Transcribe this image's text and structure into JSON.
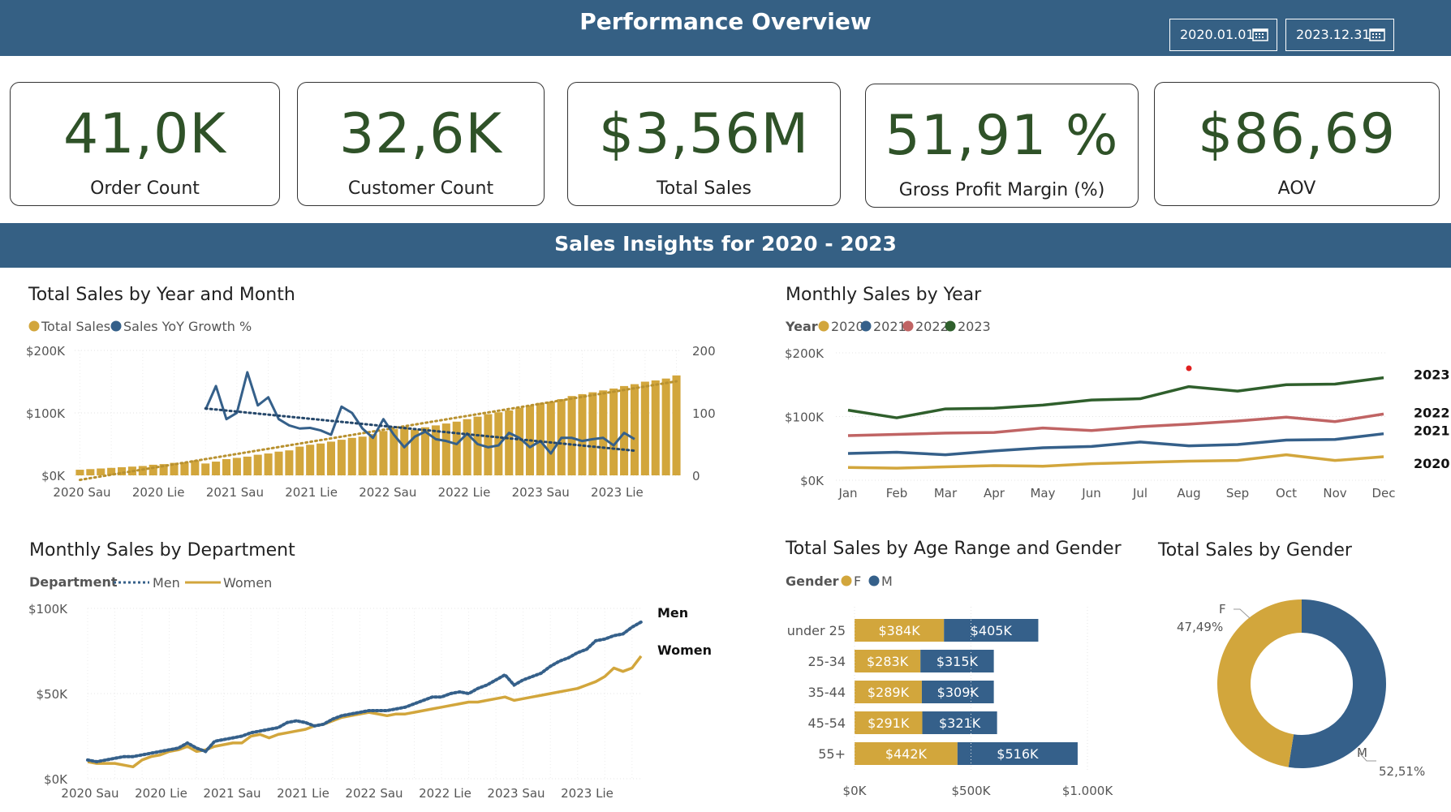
{
  "header": {
    "title": "Performance Overview",
    "date_start": "2020.01.01",
    "date_end": "2023.12.31"
  },
  "kpis": [
    {
      "value": "41,0K",
      "label": "Order Count"
    },
    {
      "value": "32,6K",
      "label": "Customer Count"
    },
    {
      "value": "$3,56M",
      "label": "Total Sales"
    },
    {
      "value": "51,91 %",
      "label": "Gross Profit Margin (%)"
    },
    {
      "value": "$86,69",
      "label": "AOV"
    }
  ],
  "section_title": "Sales Insights for 2020 - 2023",
  "colors": {
    "band": "#356084",
    "gold": "#D2A63C",
    "blue": "#35608A",
    "red": "#C06464",
    "green": "#2F5F2C",
    "kpi_text": "#2F5228"
  },
  "chart_data": [
    {
      "type": "bar",
      "title": "Total Sales by Year and Month",
      "legend": [
        "Total Sales",
        "Sales YoY Growth %"
      ],
      "ylim": [
        0,
        200000
      ],
      "y2lim": [
        0,
        200
      ],
      "y_ticks": [
        "$200K",
        "$100K",
        "$0K"
      ],
      "y2_ticks": [
        "200",
        "100",
        "0"
      ],
      "x_ticks": [
        "2020 Sau",
        "2020 Lie",
        "2021 Sau",
        "2021 Lie",
        "2022 Sau",
        "2022 Lie",
        "2023 Sau",
        "2023 Lie"
      ],
      "bar_values_k": [
        9,
        10,
        11,
        12,
        13,
        14,
        15,
        17,
        18,
        20,
        21,
        24,
        19,
        22,
        26,
        28,
        30,
        33,
        35,
        38,
        40,
        46,
        49,
        51,
        54,
        57,
        60,
        62,
        66,
        71,
        74,
        78,
        73,
        77,
        80,
        83,
        86,
        90,
        94,
        98,
        101,
        104,
        108,
        112,
        116,
        118,
        122,
        127,
        130,
        133,
        136,
        139,
        143,
        146,
        150,
        152,
        155,
        160
      ],
      "yoy_growth": [
        105,
        143,
        90,
        100,
        165,
        112,
        125,
        90,
        80,
        75,
        76,
        72,
        65,
        110,
        100,
        75,
        60,
        90,
        65,
        45,
        62,
        70,
        58,
        55,
        50,
        67,
        50,
        45,
        48,
        68,
        60,
        45,
        55,
        35,
        60,
        60,
        55,
        58,
        60,
        48,
        68,
        58
      ]
    },
    {
      "type": "line",
      "title": "Monthly Sales by Year",
      "legend_title": "Year",
      "categories": [
        "Jan",
        "Feb",
        "Mar",
        "Apr",
        "May",
        "Jun",
        "Jul",
        "Aug",
        "Sep",
        "Oct",
        "Nov",
        "Dec"
      ],
      "ylim": [
        0,
        200000
      ],
      "y_ticks": [
        "$200K",
        "$100K",
        "$0K"
      ],
      "series": [
        {
          "name": "2020",
          "values": [
            20,
            19,
            21,
            23,
            22,
            26,
            28,
            30,
            31,
            40,
            31,
            37
          ]
        },
        {
          "name": "2021",
          "values": [
            42,
            44,
            40,
            46,
            51,
            53,
            60,
            54,
            56,
            63,
            64,
            73
          ]
        },
        {
          "name": "2022",
          "values": [
            70,
            72,
            74,
            75,
            82,
            78,
            84,
            88,
            93,
            99,
            92,
            104
          ]
        },
        {
          "name": "2023",
          "values": [
            110,
            98,
            112,
            113,
            118,
            126,
            128,
            147,
            140,
            150,
            151,
            161
          ]
        }
      ]
    },
    {
      "type": "line",
      "title": "Monthly Sales by Department",
      "legend_title": "Department",
      "ylim": [
        0,
        100000
      ],
      "y_ticks": [
        "$100K",
        "$50K",
        "$0K"
      ],
      "x_ticks": [
        "2020 Sau",
        "2020 Lie",
        "2021 Sau",
        "2021 Lie",
        "2022 Sau",
        "2022 Lie",
        "2023 Sau",
        "2023 Lie"
      ],
      "series": [
        {
          "name": "Men",
          "values": [
            11,
            10,
            11,
            12,
            13,
            13,
            14,
            15,
            16,
            17,
            18,
            21,
            18,
            16,
            22,
            23,
            24,
            25,
            27,
            28,
            29,
            30,
            33,
            34,
            33,
            31,
            32,
            35,
            37,
            38,
            39,
            40,
            40,
            40,
            41,
            42,
            44,
            46,
            48,
            48,
            50,
            51,
            50,
            53,
            55,
            58,
            61,
            55,
            58,
            60,
            62,
            66,
            69,
            71,
            74,
            76,
            81,
            82,
            84,
            85,
            89,
            92
          ]
        },
        {
          "name": "Women",
          "values": [
            10,
            9,
            9,
            9,
            8,
            7,
            11,
            13,
            14,
            16,
            17,
            19,
            16,
            17,
            19,
            20,
            21,
            21,
            25,
            26,
            24,
            26,
            27,
            28,
            29,
            31,
            32,
            34,
            36,
            37,
            38,
            39,
            38,
            37,
            38,
            38,
            39,
            40,
            41,
            42,
            43,
            44,
            45,
            45,
            46,
            47,
            48,
            46,
            47,
            48,
            49,
            50,
            51,
            52,
            53,
            55,
            57,
            60,
            65,
            63,
            65,
            72
          ]
        }
      ],
      "end_labels": [
        "Men",
        "Women"
      ]
    },
    {
      "type": "bar",
      "title": "Total Sales by Age Range and Gender",
      "legend_title": "Gender",
      "categories": [
        "under 25",
        "25-34",
        "35-44",
        "45-54",
        "55+"
      ],
      "series": [
        {
          "name": "F",
          "values": [
            384,
            283,
            289,
            291,
            442
          ],
          "labels": [
            "$384K",
            "$283K",
            "$289K",
            "$291K",
            "$442K"
          ]
        },
        {
          "name": "M",
          "values": [
            405,
            315,
            309,
            321,
            516
          ],
          "labels": [
            "$405K",
            "$315K",
            "$309K",
            "$321K",
            "$516K"
          ]
        }
      ],
      "x_ticks": [
        "$0K",
        "$500K",
        "$1.000K"
      ],
      "xlim": [
        0,
        1000
      ]
    },
    {
      "type": "pie",
      "title": "Total Sales by Gender",
      "slices": [
        {
          "name": "F",
          "value": 47.49,
          "label": "47,49%"
        },
        {
          "name": "M",
          "value": 52.51,
          "label": "52,51%"
        }
      ]
    }
  ]
}
